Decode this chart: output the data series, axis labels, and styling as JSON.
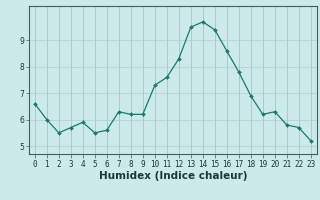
{
  "x": [
    0,
    1,
    2,
    3,
    4,
    5,
    6,
    7,
    8,
    9,
    10,
    11,
    12,
    13,
    14,
    15,
    16,
    17,
    18,
    19,
    20,
    21,
    22,
    23
  ],
  "y": [
    6.6,
    6.0,
    5.5,
    5.7,
    5.9,
    5.5,
    5.6,
    6.3,
    6.2,
    6.2,
    7.3,
    7.6,
    8.3,
    9.5,
    9.7,
    9.4,
    8.6,
    7.8,
    6.9,
    6.2,
    6.3,
    5.8,
    5.7,
    5.2
  ],
  "xlabel": "Humidex (Indice chaleur)",
  "xlim": [
    -0.5,
    23.5
  ],
  "ylim": [
    4.7,
    10.3
  ],
  "yticks": [
    5,
    6,
    7,
    8,
    9
  ],
  "xticks": [
    0,
    1,
    2,
    3,
    4,
    5,
    6,
    7,
    8,
    9,
    10,
    11,
    12,
    13,
    14,
    15,
    16,
    17,
    18,
    19,
    20,
    21,
    22,
    23
  ],
  "line_color": "#1a7a6e",
  "marker": "D",
  "marker_size": 2.0,
  "line_width": 0.9,
  "bg_color": "#cdeaea",
  "grid_color_h": "#aacfcf",
  "grid_color_v": "#c8aaaa",
  "tick_label_fontsize": 5.5,
  "xlabel_fontsize": 7.5
}
